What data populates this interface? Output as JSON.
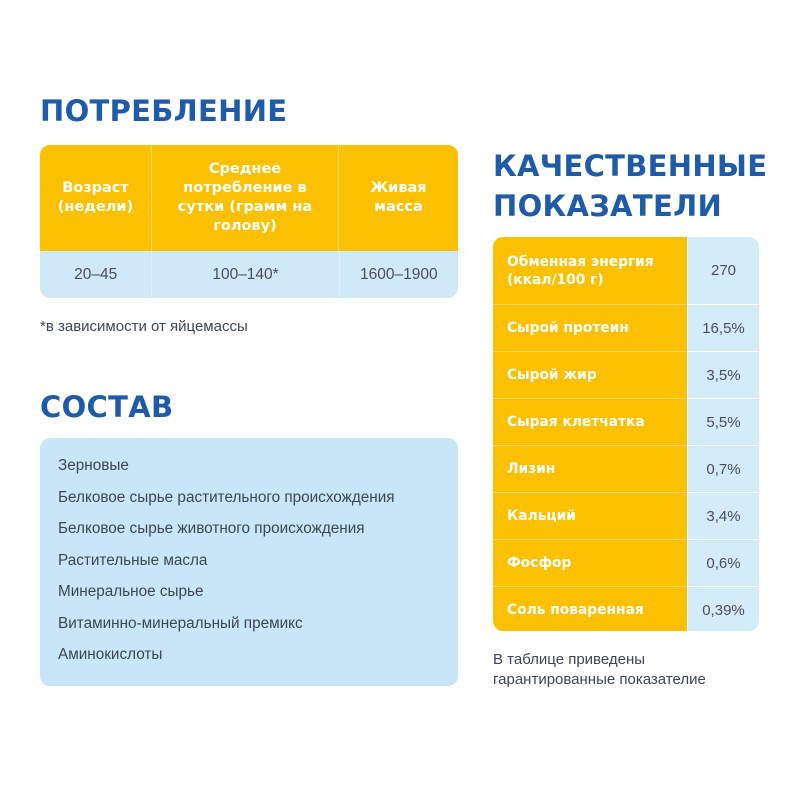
{
  "consumption": {
    "heading": "ПОТРЕБЛЕНИЕ",
    "columns": [
      "Возраст (недели)",
      "Среднее потребление в сутки (грамм на голову)",
      "Живая масса"
    ],
    "row": [
      "20–45",
      "100–140*",
      "1600–1900"
    ],
    "footnote": "*в зависимости от яйцемассы"
  },
  "composition": {
    "heading": "СОСТАВ",
    "items": [
      "Зерновые",
      "Белковое сырье растительного происхождения",
      "Белковое сырье животного происхождения",
      "Растительные масла",
      "Минеральное сырье",
      "Витаминно-минеральный премикс",
      "Аминокислоты"
    ]
  },
  "quality": {
    "heading": "КАЧЕСТВЕННЫЕ ПОКАЗАТЕЛИ",
    "rows": [
      {
        "name": "Обменная энергия (ккал/100 г)",
        "value": "270"
      },
      {
        "name": "Сырой протеин",
        "value": "16,5%"
      },
      {
        "name": "Сырой жир",
        "value": "3,5%"
      },
      {
        "name": "Сырая клетчатка",
        "value": "5,5%"
      },
      {
        "name": "Лизин",
        "value": "0,7%"
      },
      {
        "name": "Кальций",
        "value": "3,4%"
      },
      {
        "name": "Фосфор",
        "value": "0,6%"
      },
      {
        "name": "Соль поваренная",
        "value": "0,39%"
      }
    ],
    "note": "В таблице приведены гарантированные показателие"
  },
  "colors": {
    "heading": "#1e5ba8",
    "accent_yellow": "#fbc100",
    "light_blue": "#cfe9f8"
  }
}
